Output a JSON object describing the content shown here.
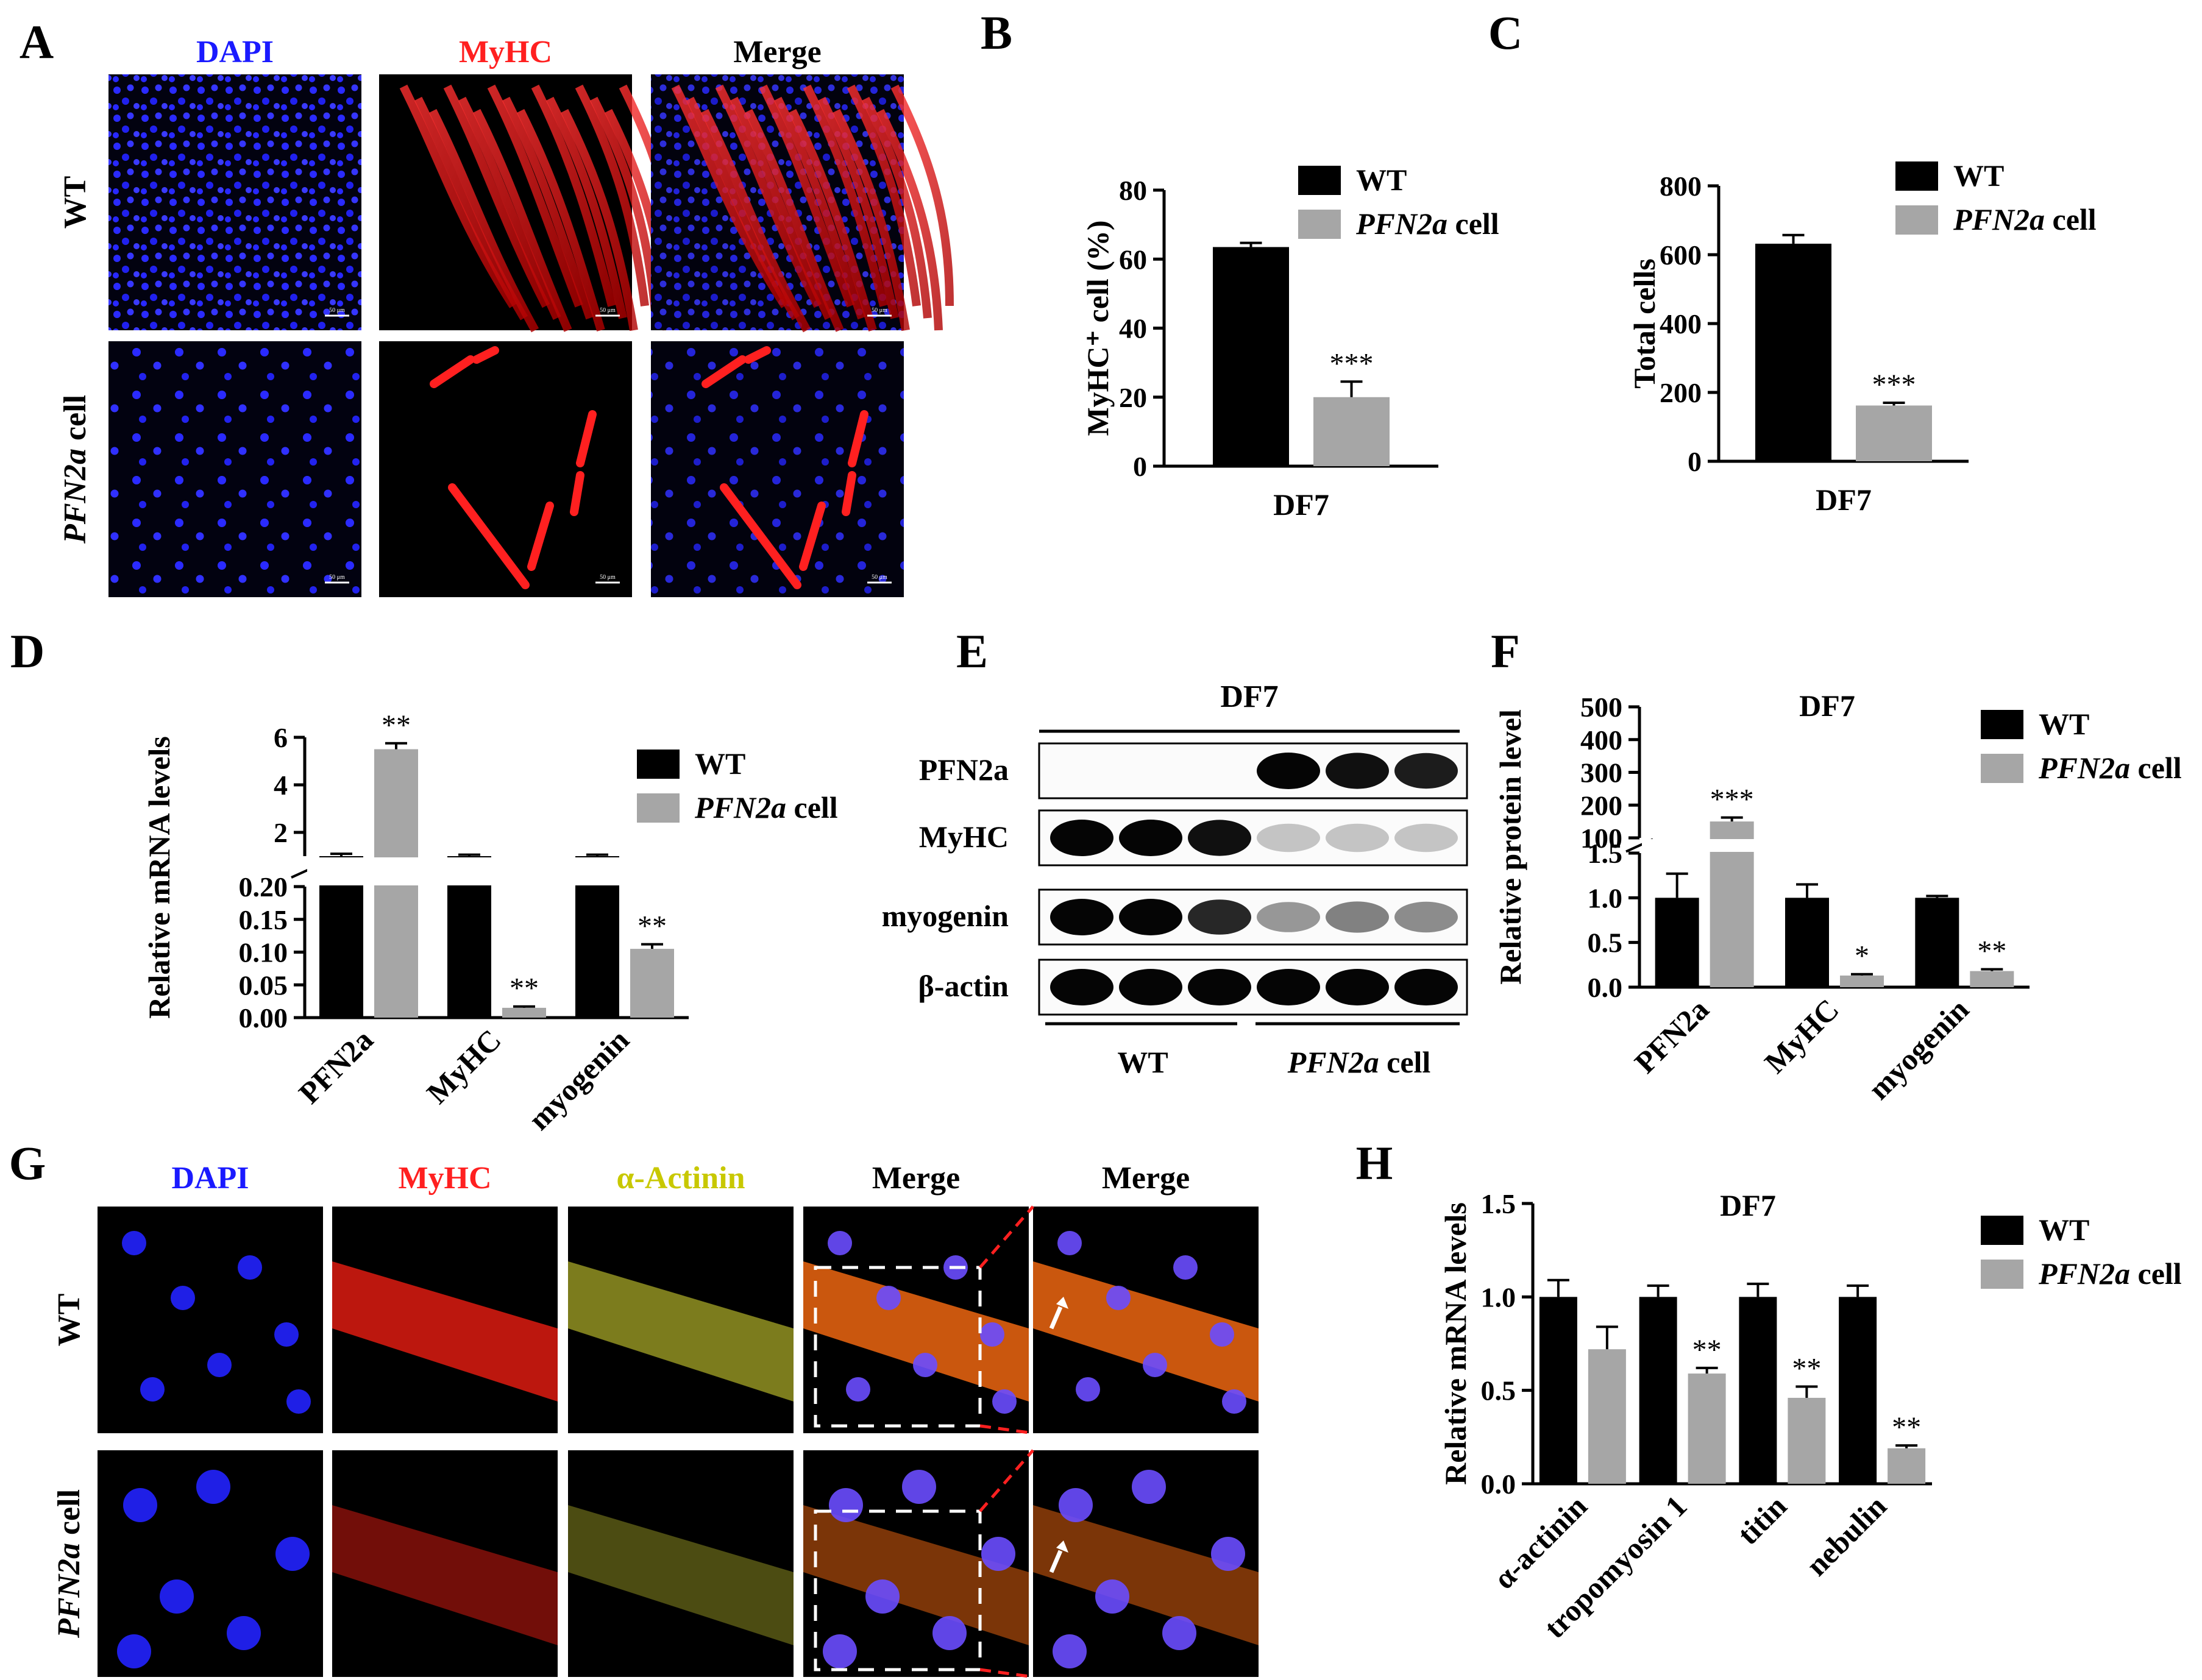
{
  "colors": {
    "wt": "#000000",
    "pfn": "#a6a6a6",
    "dapi": "#1a1aff",
    "myhc": "#ff2020",
    "actinin": "#c8c800",
    "black": "#000000"
  },
  "panel_letters": {
    "A": "A",
    "B": "B",
    "C": "C",
    "D": "D",
    "E": "E",
    "F": "F",
    "G": "G",
    "H": "H"
  },
  "panel_a": {
    "columns": [
      "DAPI",
      "MyHC",
      "Merge"
    ],
    "rows": [
      "WT",
      "PFN2a cell"
    ],
    "row_labels": [
      {
        "italic": "",
        "rest": "WT"
      },
      {
        "italic": "PFN2a",
        "rest": " cell"
      }
    ],
    "scale_bar": "50 μm"
  },
  "panel_g": {
    "columns": [
      "DAPI",
      "MyHC",
      "α-Actinin",
      "Merge",
      "Merge"
    ],
    "row_labels": [
      {
        "italic": "",
        "rest": "WT"
      },
      {
        "italic": "PFN2a",
        "rest": " cell"
      }
    ]
  },
  "legend": {
    "wt": "WT",
    "pfn_italic": "PFN2a",
    "pfn_rest": " cell"
  },
  "panel_e": {
    "header": "DF7",
    "bands": [
      "PFN2a",
      "MyHC",
      "myogenin",
      "β-actin"
    ],
    "groups": [
      {
        "italic": "",
        "rest": "WT"
      },
      {
        "italic": "PFN2a",
        "rest": " cell"
      }
    ],
    "intensities": {
      "PFN2a": [
        0,
        0,
        0,
        1,
        0.95,
        0.9
      ],
      "MyHC": [
        1,
        1,
        0.95,
        0.15,
        0.15,
        0.15
      ],
      "myogenin": [
        1,
        1,
        0.85,
        0.35,
        0.45,
        0.4
      ],
      "β-actin": [
        1,
        1,
        1,
        1,
        1,
        1
      ]
    }
  },
  "chart_data": [
    {
      "id": "B",
      "type": "bar",
      "categories": [
        "DF7"
      ],
      "series": [
        {
          "name": "WT",
          "values": [
            63.5
          ],
          "errors": [
            1.2
          ]
        },
        {
          "name": "PFN2a cell",
          "values": [
            20
          ],
          "errors": [
            4.5
          ]
        }
      ],
      "significance": [
        [
          "",
          "***"
        ]
      ],
      "ylabel": "MyHC⁺ cell (%)",
      "ylim": [
        0,
        80
      ],
      "yticks": [
        0,
        20,
        40,
        60,
        80
      ],
      "legend": "top-right"
    },
    {
      "id": "C",
      "type": "bar",
      "categories": [
        "DF7"
      ],
      "series": [
        {
          "name": "WT",
          "values": [
            632
          ],
          "errors": [
            25
          ]
        },
        {
          "name": "PFN2a cell",
          "values": [
            162
          ],
          "errors": [
            8
          ]
        }
      ],
      "significance": [
        [
          "",
          "***"
        ]
      ],
      "ylabel": "Total cells",
      "ylim": [
        0,
        800
      ],
      "yticks": [
        0,
        200,
        400,
        600,
        800
      ],
      "legend": "top-right"
    },
    {
      "id": "D",
      "type": "bar",
      "categories": [
        "PFN2a",
        "MyHC",
        "myogenin"
      ],
      "series": [
        {
          "name": "WT",
          "values": [
            1,
            1,
            1
          ],
          "errors": [
            0.1,
            0.06,
            0.06
          ]
        },
        {
          "name": "PFN2a cell",
          "values": [
            5.5,
            0.015,
            0.105
          ],
          "errors": [
            0.25,
            0.002,
            0.007
          ]
        }
      ],
      "significance": [
        [
          "",
          "**"
        ],
        [
          "",
          "**"
        ],
        [
          "",
          "**"
        ]
      ],
      "ylabel": "Relative mRNA levels",
      "axis_break": {
        "lower": [
          0,
          0.2
        ],
        "upper": [
          1,
          6
        ]
      },
      "yticks_lower": [
        "0.00",
        "0.05",
        "0.10",
        "0.15",
        "0.20"
      ],
      "yticks_upper": [
        "2",
        "4",
        "6"
      ],
      "legend": "top-right"
    },
    {
      "id": "F",
      "type": "bar",
      "title": "DF7",
      "categories": [
        "PFN2a",
        "MyHC",
        "myogenin"
      ],
      "series": [
        {
          "name": "WT",
          "values": [
            1,
            1,
            1
          ],
          "errors": [
            0.27,
            0.15,
            0.02
          ]
        },
        {
          "name": "PFN2a cell",
          "values": [
            150,
            0.13,
            0.18
          ],
          "errors": [
            12,
            0.015,
            0.02
          ]
        }
      ],
      "significance": [
        [
          "",
          "***"
        ],
        [
          "",
          "*"
        ],
        [
          "",
          "**"
        ]
      ],
      "ylabel": "Relative protein level",
      "axis_break": {
        "lower": [
          0,
          1.5
        ],
        "upper": [
          100,
          500
        ]
      },
      "yticks_lower": [
        "0.0",
        "0.5",
        "1.0",
        "1.5"
      ],
      "yticks_upper": [
        "100",
        "200",
        "300",
        "400",
        "500"
      ],
      "legend": "top-right"
    },
    {
      "id": "H",
      "type": "bar",
      "title": "DF7",
      "categories": [
        "α-actinin",
        "tropomyosin 1",
        "titin",
        "nebulin"
      ],
      "series": [
        {
          "name": "WT",
          "values": [
            1,
            1,
            1,
            1
          ],
          "errors": [
            0.09,
            0.06,
            0.07,
            0.06
          ]
        },
        {
          "name": "PFN2a cell",
          "values": [
            0.72,
            0.59,
            0.46,
            0.19
          ],
          "errors": [
            0.12,
            0.03,
            0.06,
            0.015
          ]
        }
      ],
      "significance": [
        [
          "",
          ""
        ],
        [
          "",
          "**"
        ],
        [
          "",
          "**"
        ],
        [
          "",
          "**"
        ]
      ],
      "ylabel": "Relative mRNA levels",
      "ylim": [
        0,
        1.5
      ],
      "yticks": [
        "0.0",
        "0.5",
        "1.0",
        "1.5"
      ],
      "legend": "top-right"
    }
  ]
}
